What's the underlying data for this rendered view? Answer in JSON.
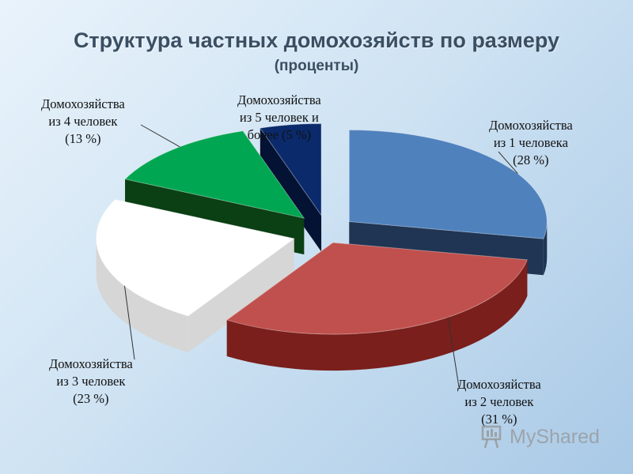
{
  "chart_data": {
    "type": "pie",
    "title": "Структура частных домохозяйств по размеру",
    "subtitle": "(проценты)",
    "slices": [
      {
        "label_lines": [
          "Домохозяйства",
          "из 1 человека",
          "(28 %)"
        ],
        "value": 28,
        "color": "#4f81bd",
        "side_color": "#1f3553"
      },
      {
        "label_lines": [
          "Домохозяйства",
          "из 2 человек",
          "(31 %)"
        ],
        "value": 31,
        "color": "#c0504d",
        "side_color": "#7a1f1c"
      },
      {
        "label_lines": [
          "Домохозяйства",
          "из 3 человек",
          "(23 %)"
        ],
        "value": 23,
        "color": "#ffffff",
        "side_color": "#d6d6d6"
      },
      {
        "label_lines": [
          "Домохозяйства",
          "из 4 человек",
          "(13 %)"
        ],
        "value": 13,
        "color": "#00a651",
        "side_color": "#0b3f14"
      },
      {
        "label_lines": [
          "Домохозяйства",
          "из 5 человек и",
          "более (5 %)"
        ],
        "value": 5,
        "color": "#0a2a6b",
        "side_color": "#041233"
      }
    ]
  },
  "watermark": {
    "text": "MyShared",
    "icon": "presentation-board-icon"
  }
}
